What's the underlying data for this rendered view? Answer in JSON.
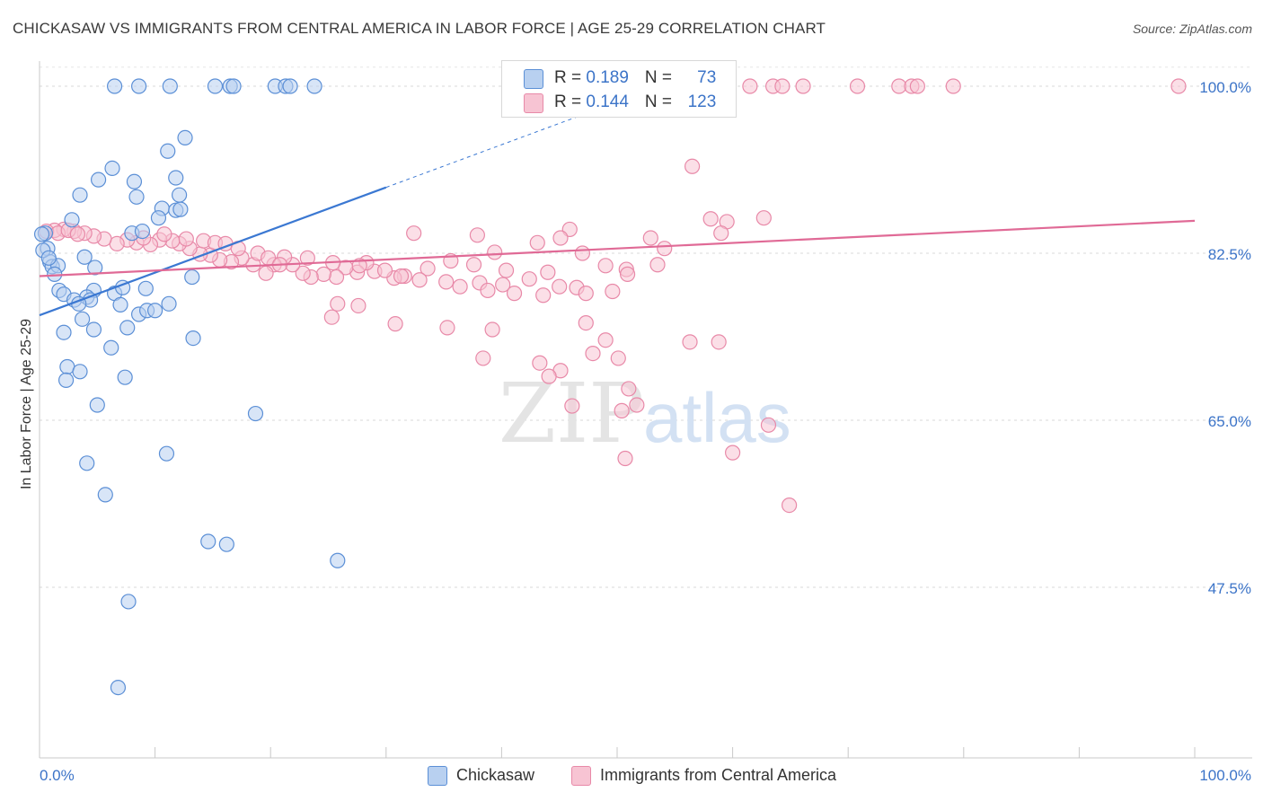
{
  "header": {
    "title": "CHICKASAW VS IMMIGRANTS FROM CENTRAL AMERICA IN LABOR FORCE | AGE 25-29 CORRELATION CHART",
    "source": "Source: ZipAtlas.com"
  },
  "watermark": {
    "part1": "ZIP",
    "part2": "atlas"
  },
  "legend": {
    "rows": [
      {
        "r_label": "R = ",
        "r_value": "0.189",
        "n_label": "N = ",
        "n_value": "73"
      },
      {
        "r_label": "R = ",
        "r_value": "0.144",
        "n_label": "N = ",
        "n_value": "123"
      }
    ]
  },
  "bottom_legend": {
    "series1": "Chickasaw",
    "series2": "Immigrants from Central America"
  },
  "colors": {
    "blue_fill": "#b8d0f0",
    "blue_stroke": "#5b8fd6",
    "blue_line": "#3b78d2",
    "pink_fill": "#f7c4d3",
    "pink_stroke": "#e889a8",
    "pink_line": "#e06a96",
    "axis_label": "#3c74c8",
    "grid": "#d9d9d9"
  },
  "chart_data": {
    "type": "scatter",
    "title": "CHICKASAW VS IMMIGRANTS FROM CENTRAL AMERICA IN LABOR FORCE | AGE 25-29 CORRELATION CHART",
    "xlabel": "",
    "ylabel": "In Labor Force | Age 25-29",
    "xlim": [
      0,
      100
    ],
    "ylim": [
      30,
      102
    ],
    "x_tick_labels": [
      "0.0%",
      "100.0%"
    ],
    "y_ticks": [
      47.5,
      65.0,
      82.5,
      100.0
    ],
    "y_tick_labels": [
      "47.5%",
      "65.0%",
      "82.5%",
      "100.0%"
    ],
    "grid": true,
    "series": [
      {
        "name": "Chickasaw",
        "r": 0.189,
        "n": 73,
        "trend": {
          "x0": 0,
          "y0": 76.0,
          "x1": 30,
          "y1": 89.4,
          "dashed_to_x": 47,
          "dashed_to_y": 97.0
        },
        "points": [
          [
            6.5,
            100
          ],
          [
            8.6,
            100
          ],
          [
            11.3,
            100
          ],
          [
            15.2,
            100
          ],
          [
            16.5,
            100
          ],
          [
            16.8,
            100
          ],
          [
            20.4,
            100
          ],
          [
            21.3,
            100
          ],
          [
            21.7,
            100
          ],
          [
            23.8,
            100
          ],
          [
            12.6,
            94.6
          ],
          [
            11.1,
            93.2
          ],
          [
            6.3,
            91.4
          ],
          [
            5.1,
            90.2
          ],
          [
            8.2,
            90.0
          ],
          [
            11.8,
            90.4
          ],
          [
            3.5,
            88.6
          ],
          [
            8.4,
            88.4
          ],
          [
            12.1,
            88.6
          ],
          [
            10.6,
            87.2
          ],
          [
            11.8,
            87.0
          ],
          [
            12.2,
            87.1
          ],
          [
            10.3,
            86.2
          ],
          [
            2.8,
            86.0
          ],
          [
            8.0,
            84.6
          ],
          [
            8.9,
            84.8
          ],
          [
            0.5,
            84.6
          ],
          [
            0.7,
            83.0
          ],
          [
            0.9,
            81.6
          ],
          [
            3.9,
            82.1
          ],
          [
            1.1,
            81.1
          ],
          [
            1.6,
            81.2
          ],
          [
            4.8,
            81.0
          ],
          [
            1.3,
            80.3
          ],
          [
            13.2,
            80.0
          ],
          [
            1.7,
            78.6
          ],
          [
            2.1,
            78.2
          ],
          [
            4.7,
            78.6
          ],
          [
            6.5,
            78.3
          ],
          [
            7.2,
            78.9
          ],
          [
            9.2,
            78.8
          ],
          [
            3.0,
            77.6
          ],
          [
            4.1,
            77.9
          ],
          [
            4.4,
            77.6
          ],
          [
            3.4,
            77.2
          ],
          [
            7.0,
            77.1
          ],
          [
            11.2,
            77.2
          ],
          [
            8.6,
            76.1
          ],
          [
            9.3,
            76.5
          ],
          [
            10.0,
            76.5
          ],
          [
            3.7,
            75.6
          ],
          [
            7.6,
            74.7
          ],
          [
            2.1,
            74.2
          ],
          [
            4.7,
            74.5
          ],
          [
            13.3,
            73.6
          ],
          [
            6.2,
            72.6
          ],
          [
            2.4,
            70.6
          ],
          [
            3.5,
            70.1
          ],
          [
            7.4,
            69.5
          ],
          [
            2.3,
            69.2
          ],
          [
            5.0,
            66.6
          ],
          [
            18.7,
            65.7
          ],
          [
            11.0,
            61.5
          ],
          [
            4.1,
            60.5
          ],
          [
            5.7,
            57.2
          ],
          [
            14.6,
            52.3
          ],
          [
            16.2,
            52.0
          ],
          [
            25.8,
            50.3
          ],
          [
            7.7,
            46.0
          ],
          [
            6.8,
            37.0
          ],
          [
            0.2,
            84.5
          ],
          [
            0.3,
            82.8
          ],
          [
            0.8,
            82.0
          ]
        ]
      },
      {
        "name": "Immigrants from Central America",
        "r": 0.144,
        "n": 123,
        "trend": {
          "x0": 0,
          "y0": 80.1,
          "x1": 100,
          "y1": 85.9
        },
        "points": [
          [
            61.5,
            100
          ],
          [
            63.5,
            100
          ],
          [
            64.3,
            100
          ],
          [
            66.1,
            100
          ],
          [
            70.8,
            100
          ],
          [
            74.4,
            100
          ],
          [
            75.5,
            100
          ],
          [
            76.0,
            100
          ],
          [
            79.1,
            100
          ],
          [
            98.6,
            100
          ],
          [
            56.5,
            91.6
          ],
          [
            32.4,
            84.6
          ],
          [
            37.9,
            84.4
          ],
          [
            45.9,
            85.0
          ],
          [
            52.9,
            84.1
          ],
          [
            58.1,
            86.1
          ],
          [
            59.5,
            85.8
          ],
          [
            59.0,
            84.6
          ],
          [
            62.7,
            86.2
          ],
          [
            45.1,
            84.1
          ],
          [
            43.1,
            83.6
          ],
          [
            54.1,
            83.0
          ],
          [
            39.4,
            82.6
          ],
          [
            47.0,
            82.5
          ],
          [
            49.0,
            81.2
          ],
          [
            53.5,
            81.3
          ],
          [
            50.8,
            80.8
          ],
          [
            40.4,
            80.7
          ],
          [
            44.0,
            80.5
          ],
          [
            37.6,
            81.3
          ],
          [
            35.6,
            81.7
          ],
          [
            33.6,
            80.9
          ],
          [
            31.6,
            80.1
          ],
          [
            30.7,
            79.9
          ],
          [
            29.0,
            80.6
          ],
          [
            28.3,
            81.5
          ],
          [
            27.5,
            80.5
          ],
          [
            26.5,
            81.0
          ],
          [
            25.7,
            80.0
          ],
          [
            24.6,
            80.3
          ],
          [
            23.5,
            80.0
          ],
          [
            22.8,
            80.4
          ],
          [
            21.9,
            81.3
          ],
          [
            21.2,
            82.1
          ],
          [
            20.3,
            81.3
          ],
          [
            19.6,
            80.4
          ],
          [
            18.5,
            81.3
          ],
          [
            17.5,
            82.0
          ],
          [
            16.6,
            81.6
          ],
          [
            15.6,
            81.8
          ],
          [
            14.8,
            82.3
          ],
          [
            13.9,
            82.4
          ],
          [
            13.0,
            83.0
          ],
          [
            12.1,
            83.5
          ],
          [
            11.5,
            83.8
          ],
          [
            10.4,
            83.9
          ],
          [
            9.6,
            83.4
          ],
          [
            8.4,
            83.6
          ],
          [
            7.6,
            83.9
          ],
          [
            6.7,
            83.5
          ],
          [
            5.6,
            84.0
          ],
          [
            4.7,
            84.3
          ],
          [
            3.9,
            84.6
          ],
          [
            3.0,
            84.8
          ],
          [
            2.1,
            85.0
          ],
          [
            1.3,
            84.9
          ],
          [
            0.6,
            84.8
          ],
          [
            1.6,
            84.6
          ],
          [
            2.5,
            84.9
          ],
          [
            3.3,
            84.5
          ],
          [
            9.0,
            84.1
          ],
          [
            10.8,
            84.5
          ],
          [
            12.7,
            84.0
          ],
          [
            14.2,
            83.8
          ],
          [
            15.2,
            83.6
          ],
          [
            16.1,
            83.5
          ],
          [
            17.2,
            83.0
          ],
          [
            18.9,
            82.5
          ],
          [
            19.8,
            82.0
          ],
          [
            20.8,
            81.3
          ],
          [
            23.2,
            82.0
          ],
          [
            25.4,
            81.5
          ],
          [
            27.7,
            81.2
          ],
          [
            29.9,
            80.7
          ],
          [
            31.3,
            80.1
          ],
          [
            32.9,
            79.7
          ],
          [
            35.2,
            79.5
          ],
          [
            36.4,
            79.0
          ],
          [
            38.1,
            79.4
          ],
          [
            38.8,
            78.6
          ],
          [
            40.1,
            79.2
          ],
          [
            41.1,
            78.3
          ],
          [
            42.4,
            79.8
          ],
          [
            43.6,
            78.1
          ],
          [
            45.0,
            79.0
          ],
          [
            46.5,
            78.9
          ],
          [
            47.3,
            78.3
          ],
          [
            49.6,
            78.5
          ],
          [
            50.9,
            80.3
          ],
          [
            25.8,
            77.2
          ],
          [
            27.6,
            77.0
          ],
          [
            25.3,
            75.8
          ],
          [
            30.8,
            75.1
          ],
          [
            35.3,
            74.7
          ],
          [
            39.2,
            74.5
          ],
          [
            38.4,
            71.5
          ],
          [
            43.3,
            71.0
          ],
          [
            45.1,
            70.2
          ],
          [
            44.1,
            69.6
          ],
          [
            47.9,
            72.0
          ],
          [
            47.3,
            75.2
          ],
          [
            49.0,
            73.4
          ],
          [
            50.1,
            71.5
          ],
          [
            51.0,
            68.3
          ],
          [
            51.7,
            66.6
          ],
          [
            50.4,
            66.0
          ],
          [
            46.1,
            66.5
          ],
          [
            56.3,
            73.2
          ],
          [
            58.8,
            73.2
          ],
          [
            60.0,
            61.6
          ],
          [
            50.7,
            61.0
          ],
          [
            63.1,
            64.5
          ],
          [
            64.9,
            56.1
          ]
        ]
      }
    ]
  }
}
